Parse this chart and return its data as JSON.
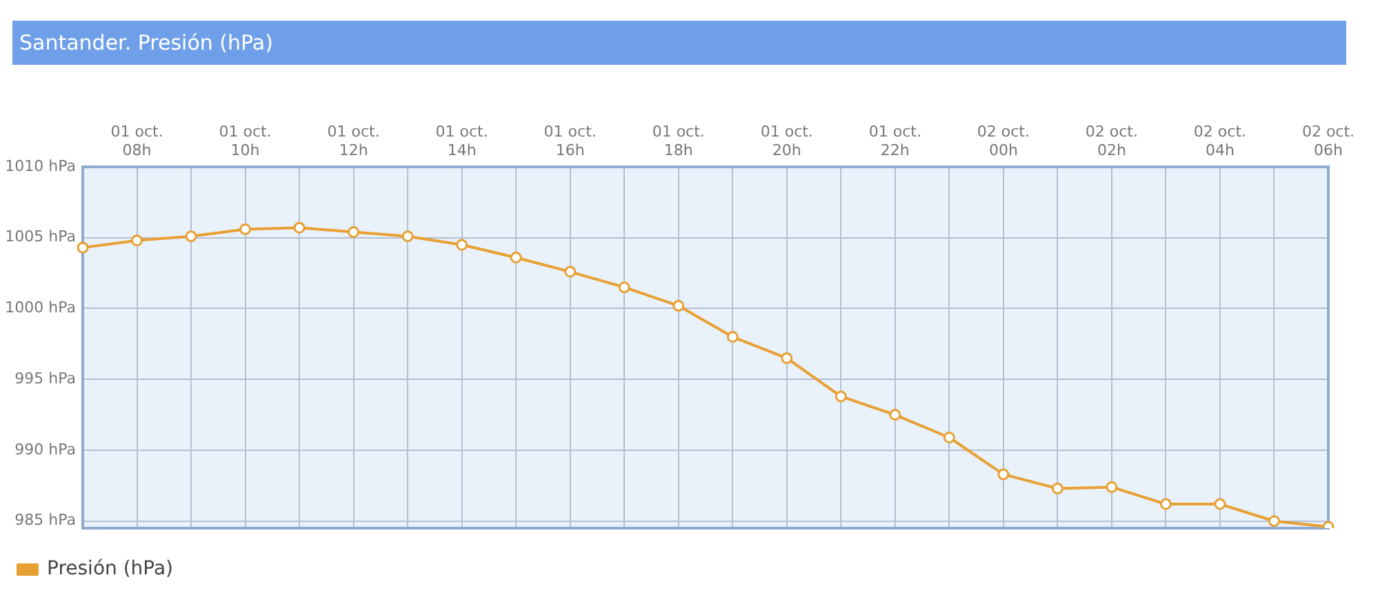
{
  "chart_data": {
    "type": "line",
    "title": "Santander. Presión (hPa)",
    "categories": [
      null,
      "01 oct.\n08h",
      null,
      "01 oct.\n10h",
      null,
      "01 oct.\n12h",
      null,
      "01 oct.\n14h",
      null,
      "01 oct.\n16h",
      null,
      "01 oct.\n18h",
      null,
      "01 oct.\n20h",
      null,
      "01 oct.\n22h",
      null,
      "02 oct.\n00h",
      null,
      "02 oct.\n02h",
      null,
      "02 oct.\n04h",
      null,
      "02 oct.\n06h"
    ],
    "series": [
      {
        "name": "Presión (hPa)",
        "color": "#e8a033",
        "values": [
          1004.3,
          1004.8,
          1005.1,
          1005.6,
          1005.7,
          1005.4,
          1005.1,
          1004.5,
          1003.6,
          1002.6,
          1001.5,
          1000.2,
          998.0,
          996.5,
          993.8,
          992.5,
          990.9,
          988.3,
          987.3,
          987.4,
          986.2,
          986.2,
          985.0,
          984.6
        ]
      }
    ],
    "ylim": [
      984.5,
      1010
    ],
    "yticks": [
      {
        "value": 985,
        "label": "985 hPa"
      },
      {
        "value": 990,
        "label": "990 hPa"
      },
      {
        "value": 995,
        "label": "995 hPa"
      },
      {
        "value": 1000,
        "label": "1000 hPa"
      },
      {
        "value": 1005,
        "label": "1005 hPa"
      },
      {
        "value": 1010,
        "label": "1010 hPa"
      }
    ],
    "grid": true,
    "legend": "bottom left",
    "marker": "circle",
    "line_style": "solid"
  }
}
